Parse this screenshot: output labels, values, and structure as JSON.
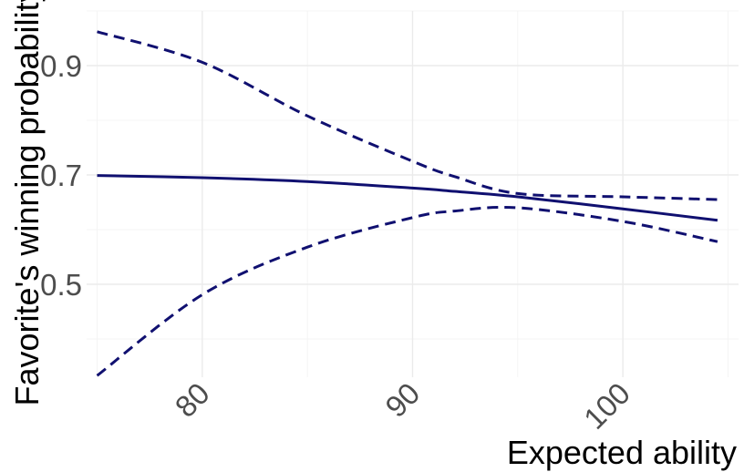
{
  "chart_data": {
    "type": "line",
    "title": "",
    "xlabel": "Expected ability",
    "ylabel": "Favorite's winning probability",
    "xlim": [
      74.5,
      105.5
    ],
    "ylim": [
      0.33,
      1.0
    ],
    "x_ticks": [
      80,
      90,
      100
    ],
    "x_tick_labels": [
      "80",
      "90",
      "100"
    ],
    "y_ticks": [
      0.5,
      0.7,
      0.9
    ],
    "y_tick_labels": [
      "0.5",
      "0.7",
      "0.9"
    ],
    "grid": true,
    "legend": "none",
    "line_color": "#101070",
    "x": [
      75,
      80,
      85,
      90,
      92,
      95,
      100,
      104.5
    ],
    "series": [
      {
        "style": "solid",
        "values": [
          0.699,
          0.695,
          0.688,
          0.676,
          0.67,
          0.66,
          0.638,
          0.617
        ]
      },
      {
        "style": "dashed",
        "values": [
          0.962,
          0.906,
          0.808,
          0.725,
          0.697,
          0.666,
          0.66,
          0.655
        ]
      },
      {
        "style": "dashed",
        "values": [
          0.333,
          0.481,
          0.568,
          0.622,
          0.634,
          0.64,
          0.615,
          0.578
        ]
      }
    ]
  }
}
